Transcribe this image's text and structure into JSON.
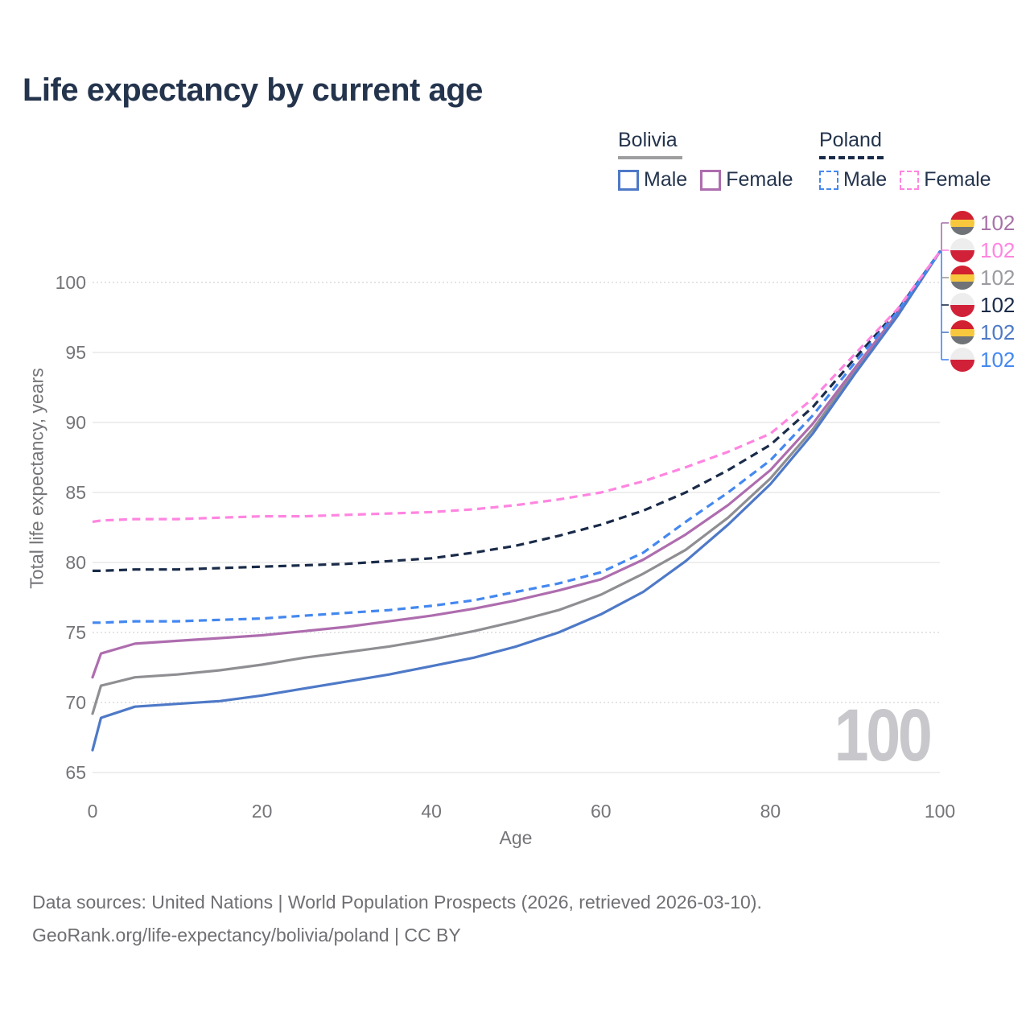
{
  "title": "Life expectancy by current age",
  "legend": {
    "groups": [
      {
        "label": "Bolivia",
        "underline": "solid",
        "items": [
          {
            "label": "Male",
            "color": "#4E79C7",
            "style": "solid"
          },
          {
            "label": "Female",
            "color": "#AE6DAE",
            "style": "solid"
          }
        ]
      },
      {
        "label": "Poland",
        "underline": "dashed",
        "items": [
          {
            "label": "Male",
            "color": "#4488F0",
            "style": "dashed"
          },
          {
            "label": "Female",
            "color": "#FF85E0",
            "style": "dashed"
          }
        ]
      }
    ]
  },
  "watermark": "100",
  "badges": [
    {
      "flag": "bolivia",
      "value": "102",
      "color": "#A873A8"
    },
    {
      "flag": "poland",
      "value": "102",
      "color": "#FF85E0"
    },
    {
      "flag": "bolivia",
      "value": "102",
      "color": "#9A9AA0"
    },
    {
      "flag": "poland",
      "value": "102",
      "color": "#1A2B49"
    },
    {
      "flag": "bolivia",
      "value": "102",
      "color": "#4E79C7"
    },
    {
      "flag": "poland",
      "value": "102",
      "color": "#4488F0"
    }
  ],
  "source_line1": "Data sources: United Nations | World Population Prospects (2026, retrieved 2026-03-10).",
  "source_line2": "GeoRank.org/life-expectancy/bolivia/poland | CC BY",
  "axis": {
    "x_label": "Age",
    "y_label": "Total life expectancy, years",
    "x_ticks": [
      0,
      20,
      40,
      60,
      80,
      100
    ],
    "y_ticks": [
      65,
      70,
      75,
      80,
      85,
      90,
      95,
      100
    ],
    "dotted_gridlines": [
      70,
      75,
      100
    ]
  },
  "chart_data": {
    "type": "line",
    "title": "Life expectancy by current age",
    "xlabel": "Age",
    "ylabel": "Total life expectancy, years",
    "xlim": [
      0,
      100
    ],
    "ylim": [
      65,
      102.5
    ],
    "grid": "horizontal",
    "legend_position": "top-right",
    "x": [
      0,
      1,
      5,
      10,
      15,
      20,
      25,
      30,
      35,
      40,
      45,
      50,
      55,
      60,
      65,
      70,
      75,
      80,
      85,
      90,
      95,
      100
    ],
    "series": [
      {
        "name": "Bolivia Both sexes",
        "country": "Bolivia",
        "sex": "Both",
        "color": "#8F8F93",
        "dash": "solid",
        "values": [
          69.2,
          71.2,
          71.8,
          72.0,
          72.3,
          72.7,
          73.2,
          73.6,
          74.0,
          74.5,
          75.1,
          75.8,
          76.6,
          77.7,
          79.2,
          80.9,
          83.2,
          86.0,
          89.5,
          93.7,
          97.7,
          102.2
        ]
      },
      {
        "name": "Bolivia Female",
        "country": "Bolivia",
        "sex": "Female",
        "color": "#AE6DAE",
        "dash": "solid",
        "values": [
          71.8,
          73.5,
          74.2,
          74.4,
          74.6,
          74.8,
          75.1,
          75.4,
          75.8,
          76.2,
          76.7,
          77.3,
          78.0,
          78.8,
          80.2,
          82.0,
          84.1,
          86.6,
          89.9,
          93.9,
          97.8,
          102.2
        ]
      },
      {
        "name": "Bolivia Male",
        "country": "Bolivia",
        "sex": "Male",
        "color": "#4E79C7",
        "dash": "solid",
        "values": [
          66.6,
          68.9,
          69.7,
          69.9,
          70.1,
          70.5,
          71.0,
          71.5,
          72.0,
          72.6,
          73.2,
          74.0,
          75.0,
          76.3,
          77.9,
          80.1,
          82.7,
          85.6,
          89.2,
          93.5,
          97.6,
          102.2
        ]
      },
      {
        "name": "Poland Both sexes",
        "country": "Poland",
        "sex": "Both",
        "color": "#1A2B49",
        "dash": "dashed",
        "values": [
          79.4,
          79.4,
          79.5,
          79.5,
          79.6,
          79.7,
          79.8,
          79.9,
          80.1,
          80.3,
          80.7,
          81.2,
          81.9,
          82.7,
          83.7,
          85.0,
          86.6,
          88.4,
          91.1,
          94.6,
          98.0,
          102.2
        ]
      },
      {
        "name": "Poland Male",
        "country": "Poland",
        "sex": "Male",
        "color": "#4488F0",
        "dash": "dashed",
        "values": [
          75.7,
          75.7,
          75.8,
          75.8,
          75.9,
          76.0,
          76.2,
          76.4,
          76.6,
          76.9,
          77.3,
          77.9,
          78.5,
          79.3,
          80.7,
          82.9,
          85.0,
          87.3,
          90.5,
          94.3,
          97.9,
          102.2
        ]
      },
      {
        "name": "Poland Female",
        "country": "Poland",
        "sex": "Female",
        "color": "#FF85E0",
        "dash": "dashed",
        "values": [
          82.9,
          83.0,
          83.1,
          83.1,
          83.2,
          83.3,
          83.3,
          83.4,
          83.5,
          83.6,
          83.8,
          84.1,
          84.5,
          85.0,
          85.8,
          86.8,
          87.9,
          89.2,
          91.7,
          94.9,
          98.1,
          102.2
        ]
      }
    ],
    "end_age": 100,
    "end_value_label": "102"
  }
}
